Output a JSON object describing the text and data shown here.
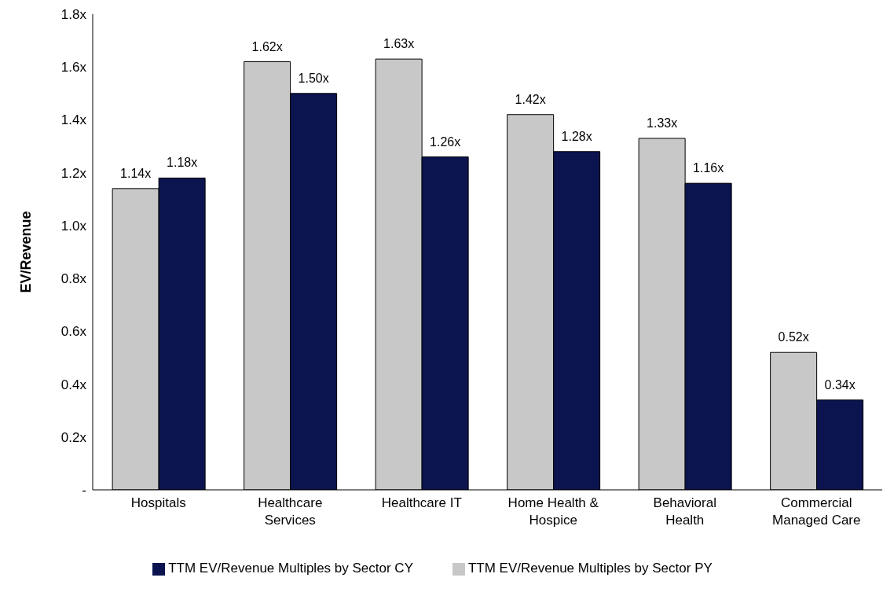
{
  "chart_data": {
    "type": "bar",
    "ylabel": "EV/Revenue",
    "categories": [
      "Hospitals",
      "Healthcare Services",
      "Healthcare IT",
      "Home Health & Hospice",
      "Behavioral Health",
      "Commercial Managed Care"
    ],
    "series": [
      {
        "name": "TTM EV/Revenue Multiples by Sector PY",
        "color": "#c8c8c8",
        "values": [
          1.14,
          1.62,
          1.63,
          1.42,
          1.33,
          0.52
        ],
        "value_labels": [
          "1.14x",
          "1.62x",
          "1.63x",
          "1.42x",
          "1.33x",
          "0.52x"
        ]
      },
      {
        "name": "TTM EV/Revenue Multiples by Sector CY",
        "color": "#0c1450",
        "values": [
          1.18,
          1.5,
          1.26,
          1.28,
          1.16,
          0.34
        ],
        "value_labels": [
          "1.18x",
          "1.50x",
          "1.26x",
          "1.28x",
          "1.16x",
          "0.34x"
        ]
      }
    ],
    "ylim": [
      0,
      1.8
    ],
    "yticks": [
      {
        "value": 0,
        "label": "-"
      },
      {
        "value": 0.2,
        "label": "0.2x"
      },
      {
        "value": 0.4,
        "label": "0.4x"
      },
      {
        "value": 0.6,
        "label": "0.6x"
      },
      {
        "value": 0.8,
        "label": "0.8x"
      },
      {
        "value": 1.0,
        "label": "1.0x"
      },
      {
        "value": 1.2,
        "label": "1.2x"
      },
      {
        "value": 1.4,
        "label": "1.4x"
      },
      {
        "value": 1.6,
        "label": "1.6x"
      },
      {
        "value": 1.8,
        "label": "1.8x"
      }
    ],
    "grid": false,
    "legend": "bottom"
  }
}
